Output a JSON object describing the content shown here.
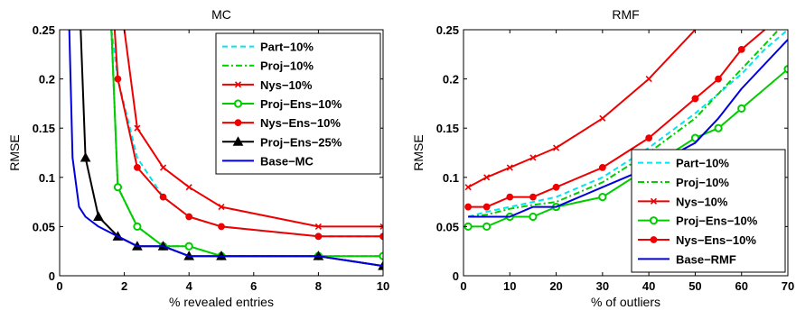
{
  "chart_data": [
    {
      "type": "line",
      "title": "MC",
      "xlabel": "% revealed entries",
      "ylabel": "RMSE",
      "xlim": [
        0,
        10
      ],
      "ylim": [
        0,
        0.25
      ],
      "xticks": [
        0,
        2,
        4,
        6,
        8,
        10
      ],
      "yticks": [
        0,
        0.05,
        0.1,
        0.15,
        0.2,
        0.25
      ],
      "xtick_labels": [
        "0",
        "2",
        "4",
        "6",
        "8",
        "10"
      ],
      "ytick_labels": [
        "0",
        "0.05",
        "0.1",
        "0.15",
        "0.2",
        "0.25"
      ],
      "legend_position": "top-right",
      "grid": false,
      "series": [
        {
          "name": "Part−10%",
          "color": "#00e5ee",
          "dash": "dashed",
          "marker": "none",
          "x": [
            1.6,
            1.8,
            2.4,
            3.2,
            4.0,
            5.0,
            8.0,
            10.0
          ],
          "y": [
            0.25,
            0.2,
            0.12,
            0.08,
            0.06,
            0.05,
            0.04,
            0.04
          ]
        },
        {
          "name": "Proj−10%",
          "color": "#00cc00",
          "dash": "dashdot",
          "marker": "none",
          "x": [
            1.6,
            1.8,
            2.4,
            3.2,
            4.0,
            5.0,
            8.0,
            10.0
          ],
          "y": [
            0.25,
            0.09,
            0.05,
            0.03,
            0.03,
            0.02,
            0.02,
            0.02
          ]
        },
        {
          "name": "Nys−10%",
          "color": "#ee0000",
          "dash": "solid",
          "marker": "x",
          "x": [
            2.0,
            2.4,
            3.2,
            4.0,
            5.0,
            8.0,
            10.0
          ],
          "y": [
            0.25,
            0.15,
            0.11,
            0.09,
            0.07,
            0.05,
            0.05
          ]
        },
        {
          "name": "Proj−Ens−10%",
          "color": "#00cc00",
          "dash": "solid",
          "marker": "circle",
          "x": [
            1.6,
            1.8,
            2.4,
            3.2,
            4.0,
            5.0,
            8.0,
            10.0
          ],
          "y": [
            0.25,
            0.09,
            0.05,
            0.03,
            0.03,
            0.02,
            0.02,
            0.02
          ]
        },
        {
          "name": "Nys−Ens−10%",
          "color": "#ee0000",
          "dash": "solid",
          "marker": "dot",
          "x": [
            1.7,
            1.8,
            2.4,
            3.2,
            4.0,
            5.0,
            8.0,
            10.0
          ],
          "y": [
            0.25,
            0.2,
            0.11,
            0.08,
            0.06,
            0.05,
            0.04,
            0.04
          ]
        },
        {
          "name": "Proj−Ens−25%",
          "color": "#000000",
          "dash": "solid",
          "marker": "triangle",
          "x": [
            0.65,
            0.8,
            1.2,
            1.8,
            2.4,
            3.2,
            4.0,
            5.0,
            8.0,
            10.0
          ],
          "y": [
            0.25,
            0.12,
            0.06,
            0.04,
            0.03,
            0.03,
            0.02,
            0.02,
            0.02,
            0.01
          ]
        },
        {
          "name": "Base−MC",
          "color": "#0000dd",
          "dash": "solid",
          "marker": "none",
          "x": [
            0.3,
            0.4,
            0.6,
            0.8,
            1.2,
            1.8,
            2.4,
            3.2,
            4.0,
            5.0,
            8.0,
            10.0
          ],
          "y": [
            0.25,
            0.12,
            0.07,
            0.06,
            0.05,
            0.04,
            0.03,
            0.03,
            0.02,
            0.02,
            0.02,
            0.01
          ]
        }
      ]
    },
    {
      "type": "line",
      "title": "RMF",
      "xlabel": "% of outliers",
      "ylabel": "RMSE",
      "xlim": [
        0,
        70
      ],
      "ylim": [
        0,
        0.25
      ],
      "xticks": [
        0,
        10,
        20,
        30,
        40,
        50,
        60,
        70
      ],
      "yticks": [
        0,
        0.05,
        0.1,
        0.15,
        0.2,
        0.25
      ],
      "xtick_labels": [
        "0",
        "10",
        "20",
        "30",
        "40",
        "50",
        "60",
        "70"
      ],
      "ytick_labels": [
        "0",
        "0.05",
        "0.1",
        "0.15",
        "0.2",
        "0.25"
      ],
      "legend_position": "bottom-right",
      "grid": false,
      "series": [
        {
          "name": "Part−10%",
          "color": "#00e5ee",
          "dash": "dashed",
          "marker": "none",
          "x": [
            1,
            5,
            10,
            15,
            20,
            30,
            40,
            50,
            55,
            60,
            65,
            70
          ],
          "y": [
            0.06,
            0.065,
            0.07,
            0.075,
            0.08,
            0.1,
            0.13,
            0.165,
            0.185,
            0.205,
            0.23,
            0.25
          ]
        },
        {
          "name": "Proj−10%",
          "color": "#00cc00",
          "dash": "dashdot",
          "marker": "none",
          "x": [
            1,
            5,
            10,
            15,
            20,
            30,
            40,
            50,
            55,
            60,
            65,
            68
          ],
          "y": [
            0.06,
            0.062,
            0.068,
            0.072,
            0.075,
            0.095,
            0.125,
            0.16,
            0.185,
            0.21,
            0.235,
            0.25
          ]
        },
        {
          "name": "Nys−10%",
          "color": "#ee0000",
          "dash": "solid",
          "marker": "x",
          "x": [
            1,
            5,
            10,
            15,
            20,
            30,
            40,
            50
          ],
          "y": [
            0.09,
            0.1,
            0.11,
            0.12,
            0.13,
            0.16,
            0.2,
            0.25
          ]
        },
        {
          "name": "Proj−Ens−10%",
          "color": "#00cc00",
          "dash": "solid",
          "marker": "circle",
          "x": [
            1,
            5,
            10,
            15,
            20,
            30,
            40,
            50,
            55,
            60,
            70
          ],
          "y": [
            0.05,
            0.05,
            0.06,
            0.06,
            0.07,
            0.08,
            0.11,
            0.14,
            0.15,
            0.17,
            0.21
          ]
        },
        {
          "name": "Nys−Ens−10%",
          "color": "#ee0000",
          "dash": "solid",
          "marker": "dot",
          "x": [
            1,
            5,
            10,
            15,
            20,
            30,
            40,
            50,
            55,
            60,
            65
          ],
          "y": [
            0.07,
            0.07,
            0.08,
            0.08,
            0.09,
            0.11,
            0.14,
            0.18,
            0.2,
            0.23,
            0.25
          ]
        },
        {
          "name": "Base−RMF",
          "color": "#0000dd",
          "dash": "solid",
          "marker": "none",
          "x": [
            1,
            5,
            10,
            15,
            20,
            30,
            40,
            50,
            55,
            60,
            70
          ],
          "y": [
            0.06,
            0.06,
            0.06,
            0.07,
            0.07,
            0.09,
            0.11,
            0.135,
            0.16,
            0.19,
            0.24
          ]
        }
      ]
    }
  ]
}
